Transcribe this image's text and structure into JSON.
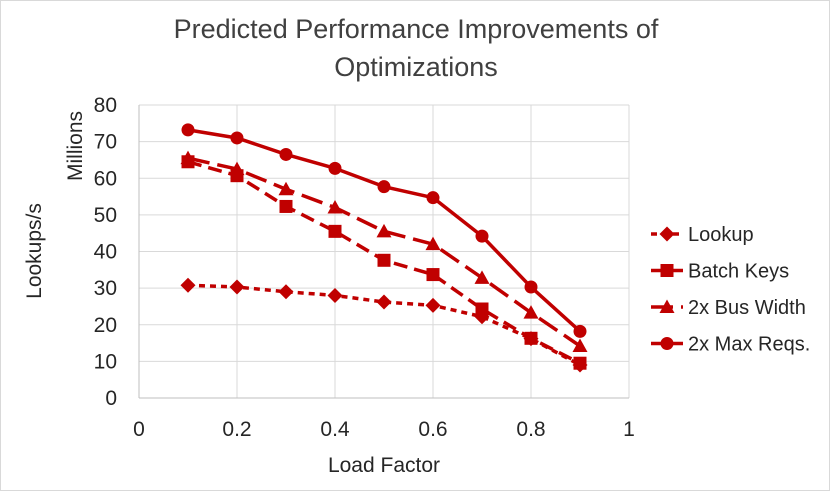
{
  "chart_data": {
    "type": "line",
    "title_lines": [
      "Predicted Performance Improvements of",
      "Optimizations"
    ],
    "xlabel": "Load Factor",
    "ylabel": "Lookups/s",
    "yunit_label": "Millions",
    "xlim": [
      0,
      1
    ],
    "ylim": [
      0,
      80
    ],
    "xticks": [
      0,
      0.2,
      0.4,
      0.6,
      0.8,
      1
    ],
    "xtick_labels": [
      "0",
      "0.2",
      "0.4",
      "0.6",
      "0.8",
      "1"
    ],
    "yticks": [
      0,
      10,
      20,
      30,
      40,
      50,
      60,
      70,
      80
    ],
    "ytick_labels": [
      "0",
      "10",
      "20",
      "30",
      "40",
      "50",
      "60",
      "70",
      "80"
    ],
    "grid": true,
    "legend_position": "right",
    "x": [
      0.1,
      0.2,
      0.3,
      0.4,
      0.5,
      0.6,
      0.7,
      0.8,
      0.9
    ],
    "series": [
      {
        "name": "Lookup",
        "marker": "diamond",
        "dash": "short-dash",
        "color": "#c00000",
        "values": [
          30.8,
          30.3,
          29,
          28,
          26.2,
          25.3,
          22.2,
          16.2,
          9
        ]
      },
      {
        "name": "Batch Keys",
        "marker": "square",
        "dash": "dash",
        "color": "#c00000",
        "values": [
          64.5,
          60.7,
          52.3,
          45.5,
          37.6,
          33.7,
          24.3,
          16.3,
          9.5
        ]
      },
      {
        "name": "2x Bus Width",
        "marker": "triangle",
        "dash": "long-dash",
        "color": "#c00000",
        "values": [
          65.5,
          62.5,
          57,
          52,
          45.5,
          42,
          32.8,
          23.3,
          14.2
        ]
      },
      {
        "name": "2x Max Reqs.",
        "marker": "circle",
        "dash": "solid",
        "color": "#c00000",
        "values": [
          73.2,
          71,
          66.5,
          62.7,
          57.7,
          54.7,
          44.2,
          30.3,
          18.2
        ]
      }
    ]
  }
}
